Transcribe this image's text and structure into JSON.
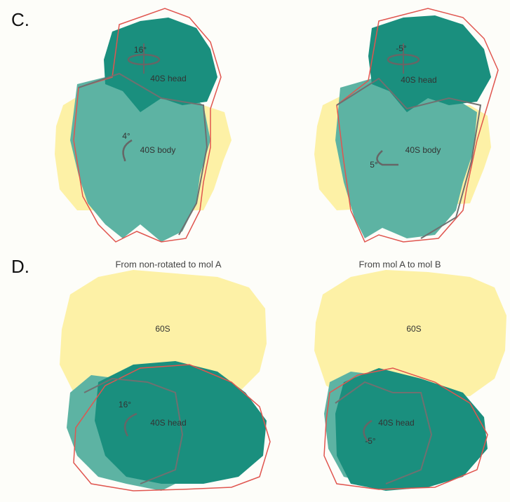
{
  "panel_c": {
    "label": "C.",
    "left": {
      "head_angle": "16°",
      "head": "40S head",
      "body_angle": "4°",
      "body": "40S body"
    },
    "right": {
      "head_angle": "-5°",
      "head": "40S head",
      "body": "40S body",
      "body_angle": "5°"
    }
  },
  "panel_d": {
    "label": "D.",
    "left": {
      "caption": "From non-rotated to mol A",
      "large": "60S",
      "head_angle": "16°",
      "head": "40S head"
    },
    "right": {
      "caption": "From mol A to mol B",
      "large": "60S",
      "head": "40S head",
      "head_angle": "-5°"
    }
  }
}
